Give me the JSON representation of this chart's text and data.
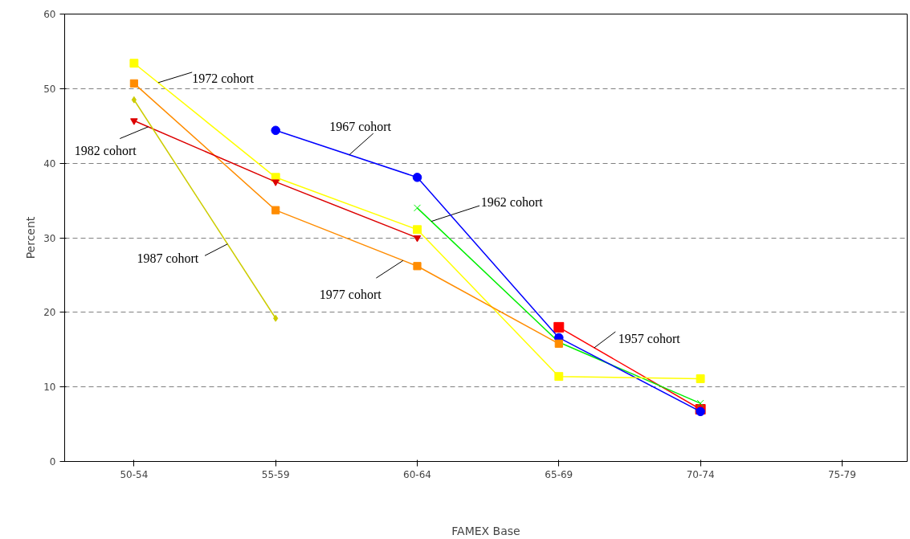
{
  "chart_data": {
    "type": "line",
    "xlabel": "FAMEX Base",
    "ylabel": "Percent",
    "categories": [
      "50-54",
      "55-59",
      "60-64",
      "65-69",
      "70-74",
      "75-79"
    ],
    "ylim": [
      0,
      60
    ],
    "yticks": [
      0,
      10,
      20,
      30,
      40,
      50,
      60
    ],
    "grid": "y",
    "legend": false,
    "series": [
      {
        "name": "1957 cohort",
        "color": "#ff0000",
        "marker": "square",
        "values": [
          null,
          null,
          null,
          18.0,
          7.0,
          null
        ]
      },
      {
        "name": "1962 cohort",
        "color": "#00ee00",
        "marker": "cross",
        "values": [
          null,
          null,
          34.0,
          16.0,
          7.8,
          null
        ]
      },
      {
        "name": "1967 cohort",
        "color": "#0000ff",
        "marker": "circle",
        "values": [
          null,
          44.4,
          38.1,
          16.6,
          6.7,
          null
        ]
      },
      {
        "name": "1972 cohort",
        "color": "#ffff00",
        "marker": "square",
        "values": [
          53.4,
          38.1,
          31.1,
          11.4,
          11.1,
          null
        ]
      },
      {
        "name": "1977 cohort",
        "color": "#ff8c00",
        "marker": "square",
        "values": [
          50.7,
          33.7,
          26.2,
          15.8,
          null,
          null
        ]
      },
      {
        "name": "1982 cohort",
        "color": "#dd0000",
        "marker": "triangle",
        "values": [
          45.7,
          37.5,
          30.0,
          null,
          null,
          null
        ]
      },
      {
        "name": "1987 cohort",
        "color": "#cccc00",
        "marker": "diamond",
        "values": [
          48.5,
          19.2,
          null,
          null,
          null,
          null
        ]
      }
    ]
  }
}
